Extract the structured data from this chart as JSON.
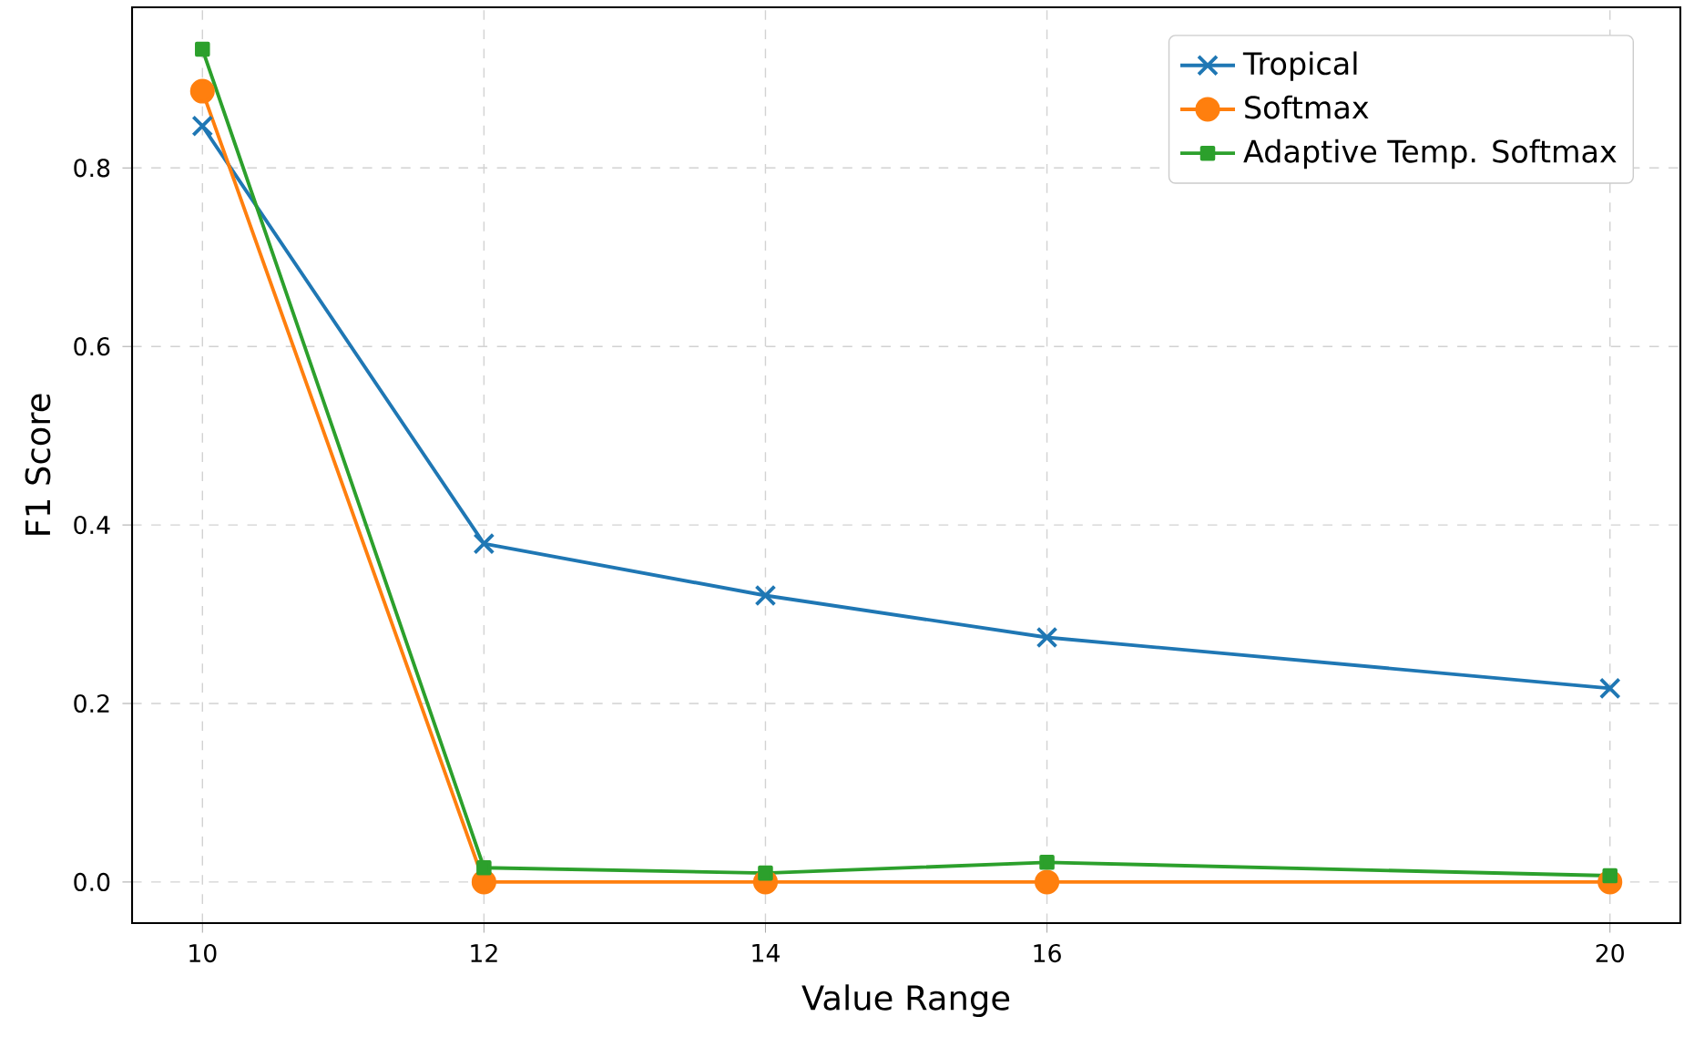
{
  "chart_data": {
    "type": "line",
    "xlabel": "Value Range",
    "ylabel": "F1 Score",
    "x": [
      10,
      12,
      14,
      16,
      20
    ],
    "series": [
      {
        "name": "Tropical",
        "color": "#1f77b4",
        "marker": "cross",
        "values": [
          0.847,
          0.379,
          0.321,
          0.274,
          0.217
        ]
      },
      {
        "name": "Softmax",
        "color": "#ff7f0e",
        "marker": "circle",
        "values": [
          0.886,
          0.0,
          0.0,
          0.0,
          0.0
        ]
      },
      {
        "name": "Adaptive Temp. Softmax",
        "color": "#2ca02c",
        "marker": "square",
        "values": [
          0.933,
          0.016,
          0.01,
          0.022,
          0.007
        ]
      }
    ],
    "xlim": [
      9.5,
      20.5
    ],
    "ylim": [
      -0.046,
      0.98
    ],
    "xticks": [
      10,
      12,
      14,
      16,
      20
    ],
    "yticks": [
      {
        "value": 0,
        "label": "0.0"
      },
      0.2,
      0.4,
      0.6,
      0.8
    ],
    "grid": true,
    "legend": "top right",
    "line_style": "solid"
  }
}
